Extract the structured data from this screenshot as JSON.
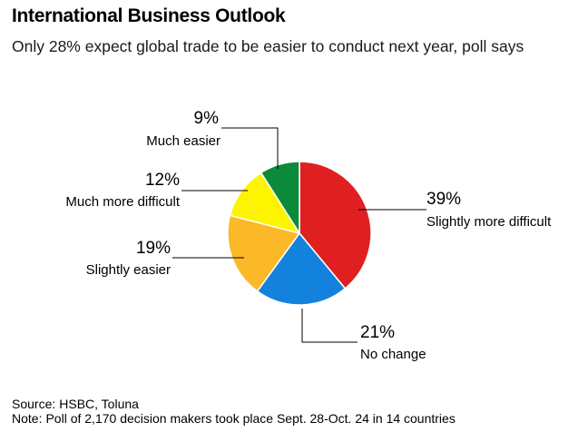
{
  "title": "International Business Outlook",
  "subtitle": "Only 28% expect global trade to be easier to conduct next year, poll says",
  "chart_data": {
    "type": "pie",
    "title": "International Business Outlook",
    "subtitle": "Only 28% expect global trade to be easier to conduct next year, poll says",
    "unit": "%",
    "slices": [
      {
        "label": "Slightly more difficult",
        "value": 39,
        "value_label": "39%",
        "color": "#e02020"
      },
      {
        "label": "No change",
        "value": 21,
        "value_label": "21%",
        "color": "#1382dc"
      },
      {
        "label": "Slightly easier",
        "value": 19,
        "value_label": "19%",
        "color": "#fbb829"
      },
      {
        "label": "Much more difficult",
        "value": 12,
        "value_label": "12%",
        "color": "#fcf400"
      },
      {
        "label": "Much easier",
        "value": 9,
        "value_label": "9%",
        "color": "#0b8a3a"
      }
    ]
  },
  "footer": {
    "source_label": "Source:",
    "source_text": "HSBC, Toluna",
    "note_label": "Note:",
    "note_text": "Poll of 2,170 decision makers took place Sept. 28-Oct. 24 in 14 countries"
  }
}
